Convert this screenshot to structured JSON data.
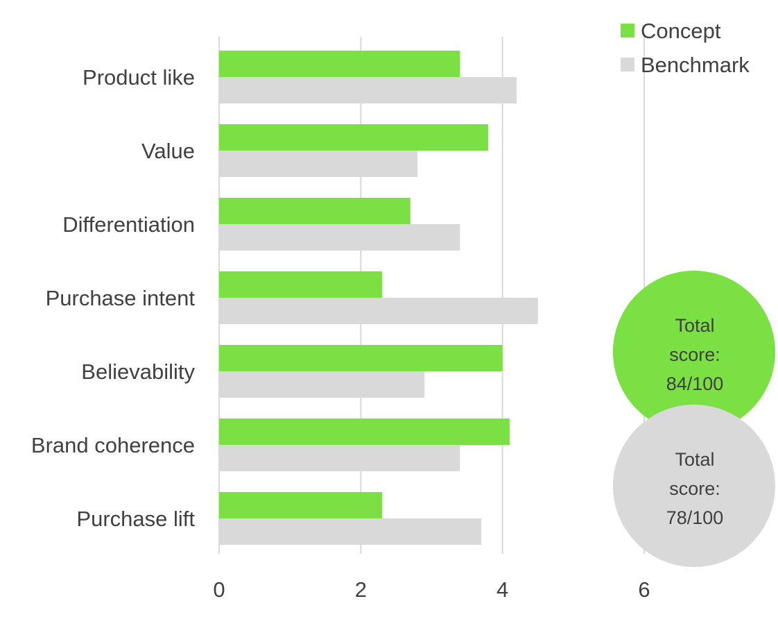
{
  "chart_data": {
    "type": "bar",
    "orientation": "horizontal",
    "categories": [
      "Product like",
      "Value",
      "Differentiation",
      "Purchase intent",
      "Believability",
      "Brand coherence",
      "Purchase lift"
    ],
    "series": [
      {
        "name": "Concept",
        "color": "#7ae043",
        "values": [
          3.4,
          3.8,
          2.7,
          2.3,
          4.0,
          4.1,
          2.3
        ]
      },
      {
        "name": "Benchmark",
        "color": "#d9d9d9",
        "values": [
          4.2,
          2.8,
          3.4,
          4.5,
          2.9,
          3.4,
          3.7
        ]
      }
    ],
    "xlim": [
      0,
      6
    ],
    "xticks": [
      "0",
      "2",
      "4",
      "6"
    ],
    "grid": true,
    "legend": {
      "position": "top-right",
      "entries": [
        "Concept",
        "Benchmark"
      ]
    },
    "annotations": [
      {
        "series": "Concept",
        "color": "#7ae043",
        "lines": [
          "Total",
          "score:",
          "84/100"
        ]
      },
      {
        "series": "Benchmark",
        "color": "#d9d9d9",
        "lines": [
          "Total",
          "score:",
          "78/100"
        ]
      }
    ],
    "gridline_color": "#d9d9d9",
    "text_color": "#404040"
  }
}
